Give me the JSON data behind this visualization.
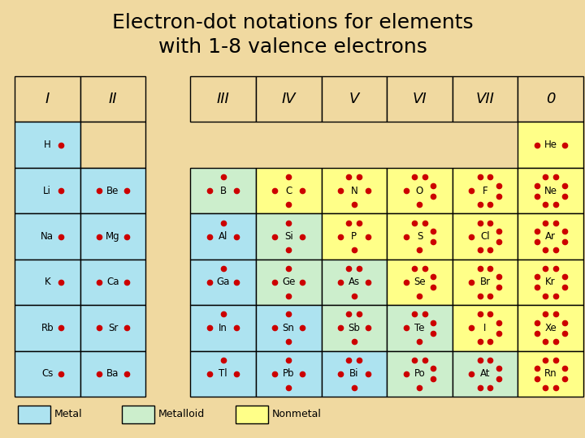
{
  "title_line1": "Electron-dot notations for elements",
  "title_line2": "with 1-8 valence electrons",
  "title_fontsize": 18,
  "bg_color": "#F0D9A0",
  "metal_color": "#ADE3F0",
  "metalloid_color": "#CCEECC",
  "nonmetal_color": "#FFFF88",
  "empty_color": "#F0D9A0",
  "dot_color": "#CC0000",
  "groups_left": [
    "I",
    "II"
  ],
  "groups_right": [
    "III",
    "IV",
    "V",
    "VI",
    "VII",
    "0"
  ],
  "cells": [
    {
      "row": 0,
      "col": 0,
      "element": "H",
      "valence": 1,
      "type": "metal"
    },
    {
      "row": 0,
      "col": 1,
      "element": "",
      "valence": 0,
      "type": "empty"
    },
    {
      "row": 0,
      "col": 7,
      "element": "He",
      "valence": 2,
      "type": "nonmetal"
    },
    {
      "row": 1,
      "col": 0,
      "element": "Li",
      "valence": 1,
      "type": "metal"
    },
    {
      "row": 1,
      "col": 1,
      "element": "Be",
      "valence": 2,
      "type": "metal"
    },
    {
      "row": 1,
      "col": 2,
      "element": "B",
      "valence": 3,
      "type": "metalloid"
    },
    {
      "row": 1,
      "col": 3,
      "element": "C",
      "valence": 4,
      "type": "nonmetal"
    },
    {
      "row": 1,
      "col": 4,
      "element": "N",
      "valence": 5,
      "type": "nonmetal"
    },
    {
      "row": 1,
      "col": 5,
      "element": "O",
      "valence": 6,
      "type": "nonmetal"
    },
    {
      "row": 1,
      "col": 6,
      "element": "F",
      "valence": 7,
      "type": "nonmetal"
    },
    {
      "row": 1,
      "col": 7,
      "element": "Ne",
      "valence": 8,
      "type": "nonmetal"
    },
    {
      "row": 2,
      "col": 0,
      "element": "Na",
      "valence": 1,
      "type": "metal"
    },
    {
      "row": 2,
      "col": 1,
      "element": "Mg",
      "valence": 2,
      "type": "metal"
    },
    {
      "row": 2,
      "col": 2,
      "element": "Al",
      "valence": 3,
      "type": "metal"
    },
    {
      "row": 2,
      "col": 3,
      "element": "Si",
      "valence": 4,
      "type": "metalloid"
    },
    {
      "row": 2,
      "col": 4,
      "element": "P",
      "valence": 5,
      "type": "nonmetal"
    },
    {
      "row": 2,
      "col": 5,
      "element": "S",
      "valence": 6,
      "type": "nonmetal"
    },
    {
      "row": 2,
      "col": 6,
      "element": "Cl",
      "valence": 7,
      "type": "nonmetal"
    },
    {
      "row": 2,
      "col": 7,
      "element": "Ar",
      "valence": 8,
      "type": "nonmetal"
    },
    {
      "row": 3,
      "col": 0,
      "element": "K",
      "valence": 1,
      "type": "metal"
    },
    {
      "row": 3,
      "col": 1,
      "element": "Ca",
      "valence": 2,
      "type": "metal"
    },
    {
      "row": 3,
      "col": 2,
      "element": "Ga",
      "valence": 3,
      "type": "metal"
    },
    {
      "row": 3,
      "col": 3,
      "element": "Ge",
      "valence": 4,
      "type": "metalloid"
    },
    {
      "row": 3,
      "col": 4,
      "element": "As",
      "valence": 5,
      "type": "metalloid"
    },
    {
      "row": 3,
      "col": 5,
      "element": "Se",
      "valence": 6,
      "type": "nonmetal"
    },
    {
      "row": 3,
      "col": 6,
      "element": "Br",
      "valence": 7,
      "type": "nonmetal"
    },
    {
      "row": 3,
      "col": 7,
      "element": "Kr",
      "valence": 8,
      "type": "nonmetal"
    },
    {
      "row": 4,
      "col": 0,
      "element": "Rb",
      "valence": 1,
      "type": "metal"
    },
    {
      "row": 4,
      "col": 1,
      "element": "Sr",
      "valence": 2,
      "type": "metal"
    },
    {
      "row": 4,
      "col": 2,
      "element": "In",
      "valence": 3,
      "type": "metal"
    },
    {
      "row": 4,
      "col": 3,
      "element": "Sn",
      "valence": 4,
      "type": "metal"
    },
    {
      "row": 4,
      "col": 4,
      "element": "Sb",
      "valence": 5,
      "type": "metalloid"
    },
    {
      "row": 4,
      "col": 5,
      "element": "Te",
      "valence": 6,
      "type": "metalloid"
    },
    {
      "row": 4,
      "col": 6,
      "element": "I",
      "valence": 7,
      "type": "nonmetal"
    },
    {
      "row": 4,
      "col": 7,
      "element": "Xe",
      "valence": 8,
      "type": "nonmetal"
    },
    {
      "row": 5,
      "col": 0,
      "element": "Cs",
      "valence": 1,
      "type": "metal"
    },
    {
      "row": 5,
      "col": 1,
      "element": "Ba",
      "valence": 2,
      "type": "metal"
    },
    {
      "row": 5,
      "col": 2,
      "element": "Tl",
      "valence": 3,
      "type": "metal"
    },
    {
      "row": 5,
      "col": 3,
      "element": "Pb",
      "valence": 4,
      "type": "metal"
    },
    {
      "row": 5,
      "col": 4,
      "element": "Bi",
      "valence": 5,
      "type": "metal"
    },
    {
      "row": 5,
      "col": 5,
      "element": "Po",
      "valence": 6,
      "type": "metalloid"
    },
    {
      "row": 5,
      "col": 6,
      "element": "At",
      "valence": 7,
      "type": "metalloid"
    },
    {
      "row": 5,
      "col": 7,
      "element": "Rn",
      "valence": 8,
      "type": "nonmetal"
    }
  ],
  "nrows": 6,
  "ncols": 8,
  "metal_color_legend": "#ADE3F0",
  "metalloid_color_legend": "#CCEECC",
  "nonmetal_color_legend": "#FFFF88"
}
